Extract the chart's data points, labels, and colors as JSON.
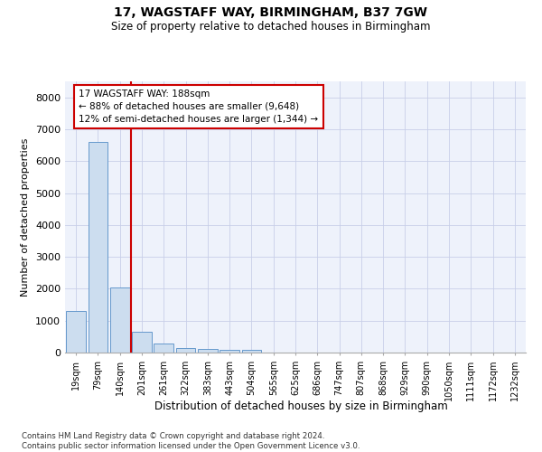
{
  "title1": "17, WAGSTAFF WAY, BIRMINGHAM, B37 7GW",
  "title2": "Size of property relative to detached houses in Birmingham",
  "xlabel": "Distribution of detached houses by size in Birmingham",
  "ylabel": "Number of detached properties",
  "footnote": "Contains HM Land Registry data © Crown copyright and database right 2024.\nContains public sector information licensed under the Open Government Licence v3.0.",
  "bar_labels": [
    "19sqm",
    "79sqm",
    "140sqm",
    "201sqm",
    "261sqm",
    "322sqm",
    "383sqm",
    "443sqm",
    "504sqm",
    "565sqm",
    "625sqm",
    "686sqm",
    "747sqm",
    "807sqm",
    "868sqm",
    "929sqm",
    "990sqm",
    "1050sqm",
    "1111sqm",
    "1172sqm",
    "1232sqm"
  ],
  "bar_heights": [
    1300,
    6600,
    2050,
    650,
    290,
    150,
    100,
    80,
    80,
    0,
    0,
    0,
    0,
    0,
    0,
    0,
    0,
    0,
    0,
    0,
    0
  ],
  "bar_color": "#ccddef",
  "bar_edge_color": "#6699cc",
  "vline_x": 2.52,
  "vline_color": "#cc0000",
  "ylim": [
    0,
    8500
  ],
  "yticks": [
    0,
    1000,
    2000,
    3000,
    4000,
    5000,
    6000,
    7000,
    8000
  ],
  "annotation_text": "17 WAGSTAFF WAY: 188sqm\n← 88% of detached houses are smaller (9,648)\n12% of semi-detached houses are larger (1,344) →",
  "annotation_box_color": "#cc0000",
  "bg_color": "#eef2fb",
  "grid_color": "#c8cfe8"
}
